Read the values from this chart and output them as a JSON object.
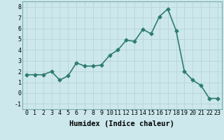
{
  "x": [
    0,
    1,
    2,
    3,
    4,
    5,
    6,
    7,
    8,
    9,
    10,
    11,
    12,
    13,
    14,
    15,
    16,
    17,
    18,
    19,
    20,
    21,
    22,
    23
  ],
  "y": [
    1.7,
    1.7,
    1.7,
    2.0,
    1.2,
    1.6,
    2.8,
    2.5,
    2.5,
    2.6,
    3.5,
    4.0,
    4.9,
    4.8,
    5.9,
    5.5,
    7.1,
    7.8,
    5.8,
    2.0,
    1.2,
    0.7,
    -0.5,
    -0.5
  ],
  "line_color": "#2e7d6e",
  "marker": "D",
  "markersize": 2.5,
  "linewidth": 1.2,
  "xlabel": "Humidex (Indice chaleur)",
  "xlim": [
    -0.5,
    23.5
  ],
  "ylim": [
    -1.5,
    8.5
  ],
  "yticks": [
    -1,
    0,
    1,
    2,
    3,
    4,
    5,
    6,
    7,
    8
  ],
  "xticks": [
    0,
    1,
    2,
    3,
    4,
    5,
    6,
    7,
    8,
    9,
    10,
    11,
    12,
    13,
    14,
    15,
    16,
    17,
    18,
    19,
    20,
    21,
    22,
    23
  ],
  "xtick_labels": [
    "0",
    "1",
    "2",
    "3",
    "4",
    "5",
    "6",
    "7",
    "8",
    "9",
    "10",
    "11",
    "12",
    "13",
    "14",
    "15",
    "16",
    "17",
    "18",
    "19",
    "20",
    "21",
    "22",
    "23"
  ],
  "bg_color": "#cce8ec",
  "grid_color": "#b8d4d8",
  "tick_fontsize": 6,
  "xlabel_fontsize": 7.5
}
